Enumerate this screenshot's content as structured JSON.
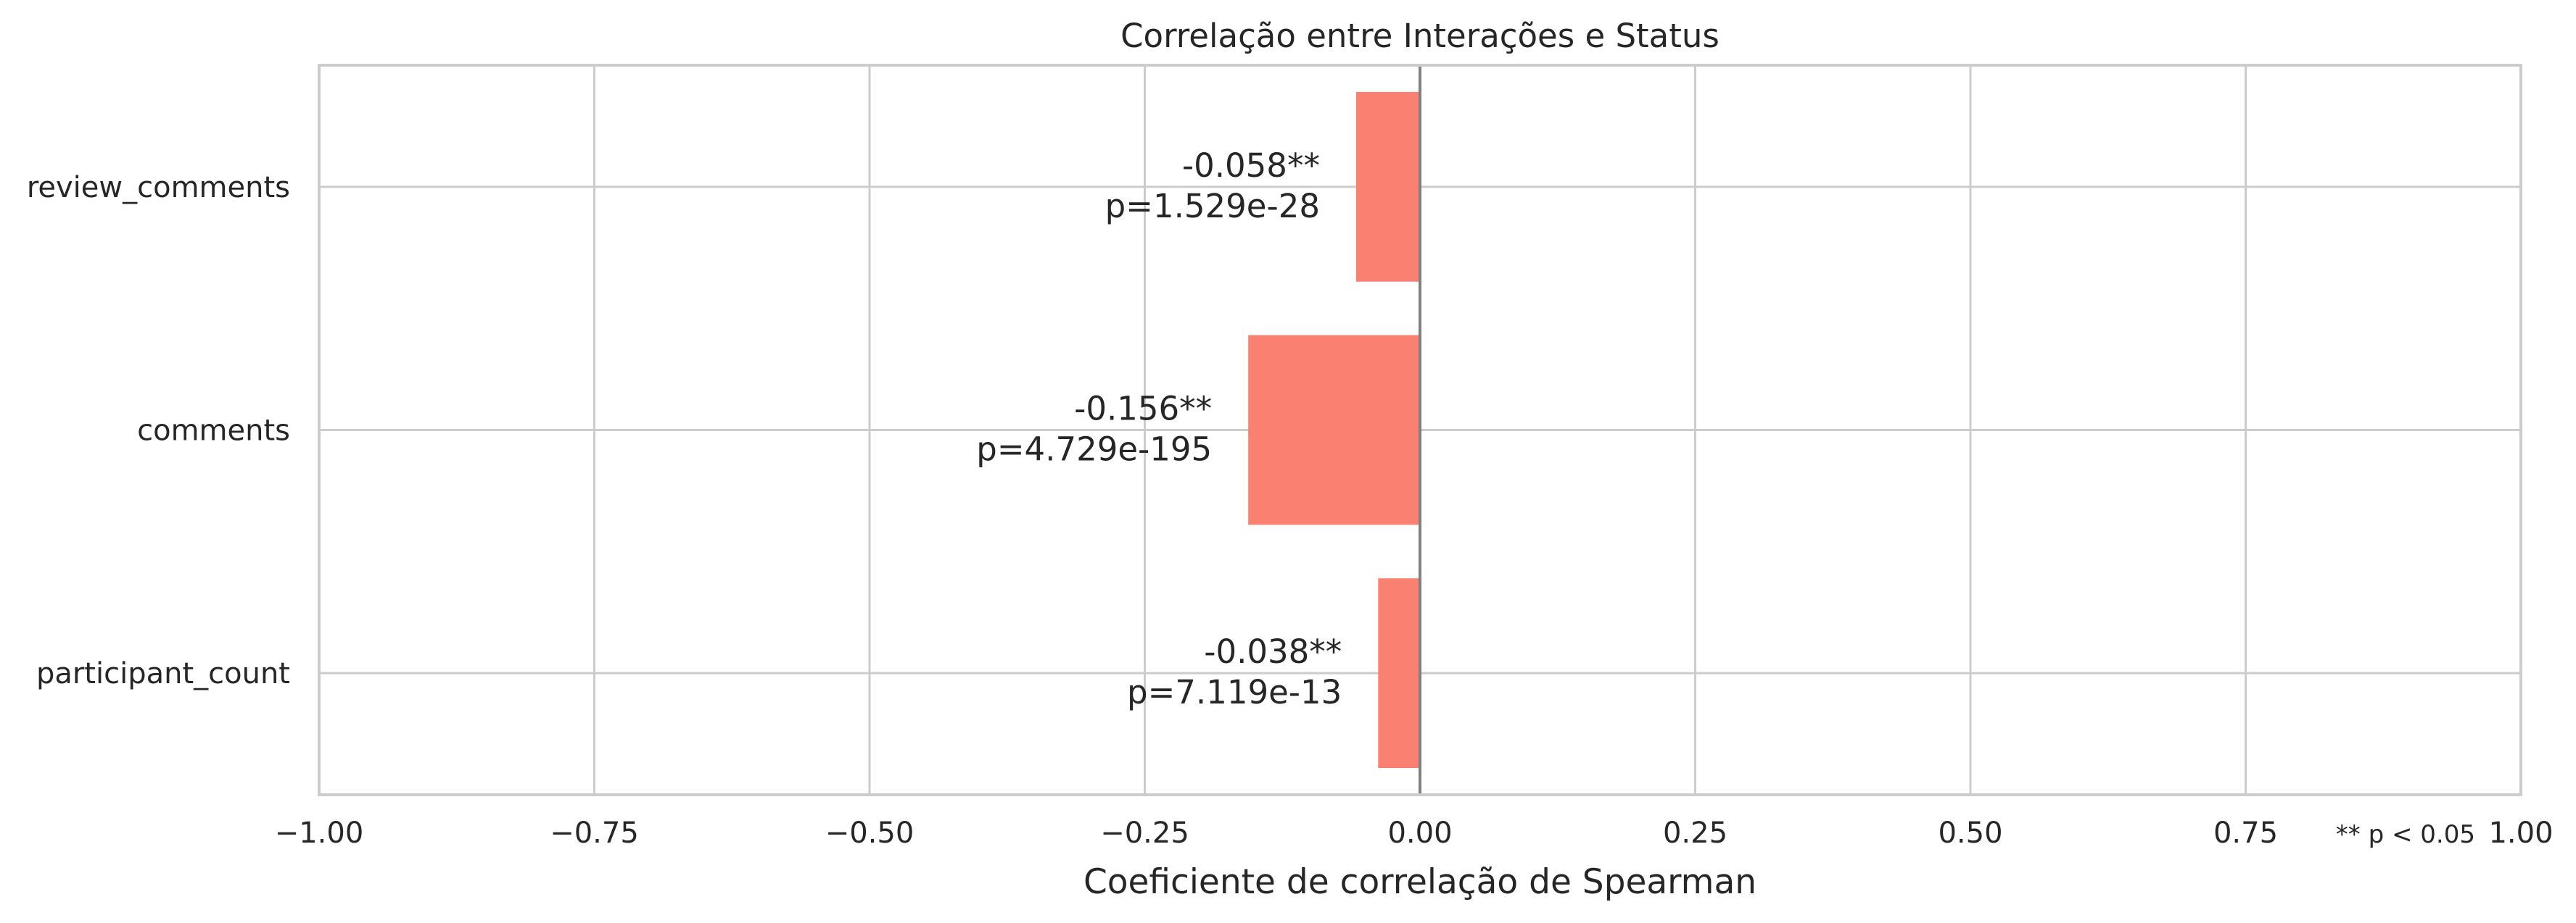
{
  "chart_data": {
    "type": "bar",
    "orientation": "horizontal",
    "title": "Correlação entre Interações e Status",
    "xlabel": "Coeficiente de correlação de Spearman",
    "ylabel": "",
    "xlim": [
      -1.0,
      1.0
    ],
    "x_ticks": [
      -1.0,
      -0.75,
      -0.5,
      -0.25,
      0.0,
      0.25,
      0.5,
      0.75,
      1.0
    ],
    "x_tick_labels": [
      "−1.00",
      "−0.75",
      "−0.50",
      "−0.25",
      "0.00",
      "0.25",
      "0.50",
      "0.75",
      "1.00"
    ],
    "categories": [
      "review_comments",
      "comments",
      "participant_count"
    ],
    "values": [
      -0.058,
      -0.156,
      -0.038
    ],
    "value_labels": [
      "-0.058**",
      "-0.156**",
      "-0.038**"
    ],
    "p_labels": [
      "p=1.529e-28",
      "p=4.729e-195",
      "p=7.119e-13"
    ],
    "footnote": "** p < 0.05",
    "grid": true,
    "legend": "none",
    "bar_color": "#fa8072",
    "zero_line_color": "#808080",
    "grid_color": "#cccccc"
  }
}
